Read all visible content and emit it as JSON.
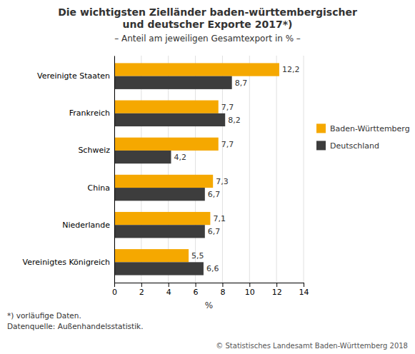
{
  "chart_data": {
    "type": "bar",
    "orientation": "horizontal",
    "title": [
      "Die wichtigsten Zielländer baden-württembergischer",
      "und deutscher Exporte 2017*)"
    ],
    "subtitle": "– Anteil am jeweiligen Gesamtexport in % –",
    "categories": [
      "Vereinigte Staaten",
      "Frankreich",
      "Schweiz",
      "China",
      "Niederlande",
      "Vereinigtes Königreich"
    ],
    "series": [
      {
        "name": "Baden-Württemberg",
        "color": "#F5A800",
        "values": [
          12.2,
          7.7,
          7.7,
          7.3,
          7.1,
          5.5
        ],
        "value_labels": [
          "12,2",
          "7,7",
          "7,7",
          "7,3",
          "7,1",
          "5,5"
        ]
      },
      {
        "name": "Deutschland",
        "color": "#3D3D3D",
        "values": [
          8.7,
          8.2,
          4.2,
          6.7,
          6.7,
          6.6
        ],
        "value_labels": [
          "8,7",
          "8,2",
          "4,2",
          "6,7",
          "6,7",
          "6,6"
        ]
      }
    ],
    "xlabel": "%",
    "xlim": [
      0,
      14
    ],
    "xticks": [
      0,
      2,
      4,
      6,
      8,
      10,
      12,
      14
    ],
    "grid": true,
    "legend": "right",
    "data_labels": true,
    "annotations": [
      "*) vorläufige Daten.",
      "Datenquelle: Außenhandelsstatistik.",
      "© Statistisches Landesamt Baden-Württemberg 2018"
    ]
  }
}
